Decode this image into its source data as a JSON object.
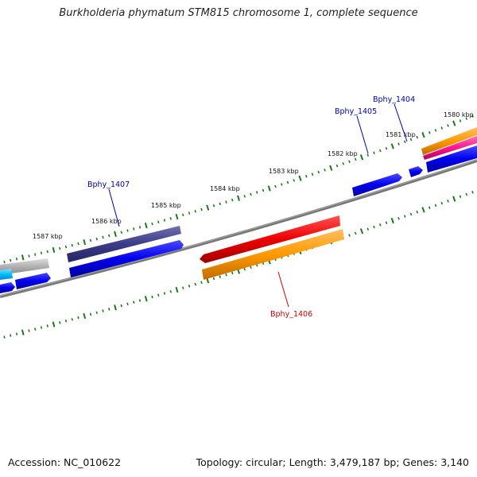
{
  "title": "Burkholderia phymatum STM815 chromosome 1, complete sequence",
  "footer": {
    "accession": "Accession: NC_010622",
    "topology": "Topology: circular; Length: 3,479,187 bp; Genes: 3,140"
  },
  "scale_labels": [
    "1587 kbp",
    "1586 kbp",
    "1585 kbp",
    "1584 kbp",
    "1583 kbp",
    "1582 kbp",
    "1581 kbp",
    "1580 kbp"
  ],
  "gene_labels": [
    {
      "text": "Bphy_1407",
      "color": "#0000aa"
    },
    {
      "text": "Bphy_1405",
      "color": "#0000aa"
    },
    {
      "text": "Bphy_1404",
      "color": "#0000aa"
    },
    {
      "text": "Bphy_1406",
      "color": "#cc0000"
    }
  ],
  "colors": {
    "backbone": "#7a7a7a",
    "tick": "#1a7a1a",
    "forward_cds": "#0000ee",
    "dark_cds": "#3b3b8a",
    "red_cds": "#ee0000",
    "orange_cds": "#ff9900",
    "magenta_cds": "#ff1493",
    "cyan_cds": "#00bfff",
    "grey_cds": "#b0b0b0"
  }
}
